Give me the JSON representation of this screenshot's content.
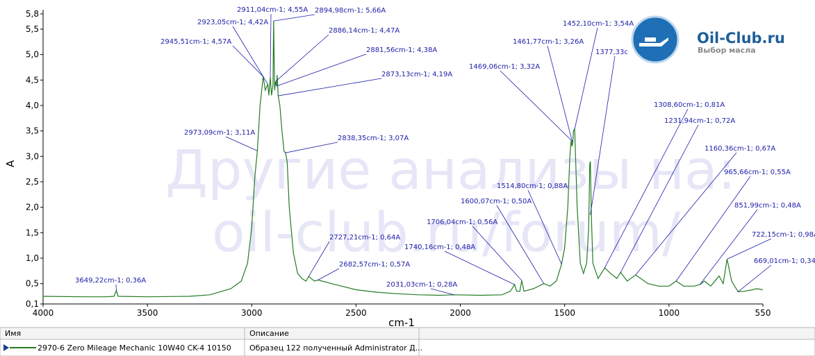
{
  "chart_data": {
    "type": "line",
    "xlabel": "cm-1",
    "ylabel": "A",
    "xlim": [
      4000,
      550
    ],
    "ylim": [
      0.1,
      5.8
    ],
    "xticks": [
      4000,
      3500,
      3000,
      2500,
      2000,
      1500,
      1000,
      550
    ],
    "yticks": [
      {
        "value": 5.8,
        "label": "5,8"
      },
      {
        "value": 5.5,
        "label": "5,5"
      },
      {
        "value": 5.0,
        "label": "5,0"
      },
      {
        "value": 4.5,
        "label": "4,5"
      },
      {
        "value": 4.0,
        "label": "4,0"
      },
      {
        "value": 3.5,
        "label": "3,5"
      },
      {
        "value": 3.0,
        "label": "3,0"
      },
      {
        "value": 2.5,
        "label": "2,5"
      },
      {
        "value": 2.0,
        "label": "2,0"
      },
      {
        "value": 1.5,
        "label": "1,5"
      },
      {
        "value": 1.0,
        "label": "1,0"
      },
      {
        "value": 0.5,
        "label": "0,5"
      },
      {
        "value": 0.1,
        "label": "0,1"
      }
    ],
    "x": [
      4000,
      3800,
      3700,
      3660,
      3649,
      3640,
      3500,
      3300,
      3200,
      3100,
      3050,
      3020,
      3000,
      2985,
      2973,
      2960,
      2945,
      2935,
      2923,
      2918,
      2911,
      2905,
      2898,
      2895,
      2890,
      2886,
      2881,
      2878,
      2873,
      2865,
      2855,
      2845,
      2838,
      2830,
      2820,
      2800,
      2780,
      2760,
      2740,
      2727,
      2700,
      2682,
      2600,
      2500,
      2400,
      2300,
      2200,
      2100,
      2031,
      1900,
      1800,
      1760,
      1740,
      1730,
      1715,
      1706,
      1695,
      1650,
      1600,
      1570,
      1540,
      1515,
      1500,
      1485,
      1475,
      1469,
      1465,
      1461,
      1458,
      1452,
      1440,
      1425,
      1410,
      1395,
      1385,
      1380,
      1377,
      1372,
      1365,
      1340,
      1308,
      1280,
      1250,
      1232,
      1200,
      1160,
      1100,
      1050,
      1000,
      966,
      930,
      880,
      852,
      830,
      800,
      760,
      740,
      722,
      715,
      700,
      669,
      640,
      600,
      580,
      550
    ],
    "series": [
      {
        "color": "#237a23",
        "values": [
          0.25,
          0.24,
          0.24,
          0.25,
          0.36,
          0.25,
          0.24,
          0.25,
          0.28,
          0.4,
          0.55,
          0.9,
          1.6,
          2.6,
          3.11,
          4.0,
          4.57,
          4.3,
          4.42,
          4.2,
          4.55,
          4.2,
          4.4,
          5.66,
          4.3,
          4.47,
          4.38,
          4.6,
          4.19,
          4.0,
          3.5,
          3.1,
          3.07,
          2.9,
          2.0,
          1.1,
          0.7,
          0.6,
          0.55,
          0.64,
          0.55,
          0.57,
          0.48,
          0.38,
          0.33,
          0.3,
          0.28,
          0.27,
          0.28,
          0.27,
          0.28,
          0.35,
          0.48,
          0.35,
          0.35,
          0.56,
          0.35,
          0.4,
          0.5,
          0.45,
          0.55,
          0.88,
          1.2,
          2.0,
          3.0,
          3.32,
          3.2,
          3.26,
          3.5,
          3.54,
          2.0,
          0.9,
          0.7,
          0.9,
          1.6,
          2.85,
          2.9,
          1.8,
          0.9,
          0.6,
          0.81,
          0.7,
          0.6,
          0.72,
          0.55,
          0.67,
          0.5,
          0.45,
          0.45,
          0.55,
          0.45,
          0.45,
          0.48,
          0.55,
          0.45,
          0.65,
          0.5,
          0.98,
          0.85,
          0.55,
          0.34,
          0.35,
          0.38,
          0.4,
          0.38
        ]
      }
    ],
    "annotation_color": "#1c1ca8",
    "annotations": [
      {
        "label": "3649,22cm-1; 0,36A",
        "x": 3649.22,
        "y": 0.36
      },
      {
        "label": "2945,51cm-1; 4,57A",
        "x": 2945.51,
        "y": 4.57
      },
      {
        "label": "2923,05cm-1; 4,42A",
        "x": 2923.05,
        "y": 4.42
      },
      {
        "label": "2911,04cm-1; 4,55A",
        "x": 2911.04,
        "y": 4.55
      },
      {
        "label": "2894,98cm-1; 5,66A",
        "x": 2894.98,
        "y": 5.66
      },
      {
        "label": "2886,14cm-1; 4,47A",
        "x": 2886.14,
        "y": 4.47
      },
      {
        "label": "2881,56cm-1; 4,38A",
        "x": 2881.56,
        "y": 4.38
      },
      {
        "label": "2873,13cm-1; 4,19A",
        "x": 2873.13,
        "y": 4.19
      },
      {
        "label": "2973,09cm-1; 3,11A",
        "x": 2973.09,
        "y": 3.11
      },
      {
        "label": "2838,35cm-1; 3,07A",
        "x": 2838.35,
        "y": 3.07
      },
      {
        "label": "2727,21cm-1; 0,64A",
        "x": 2727.21,
        "y": 0.64
      },
      {
        "label": "2682,57cm-1; 0,57A",
        "x": 2682.57,
        "y": 0.57
      },
      {
        "label": "2031,03cm-1; 0,28A",
        "x": 2031.03,
        "y": 0.28
      },
      {
        "label": "1740,16cm-1; 0,48A",
        "x": 1740.16,
        "y": 0.48
      },
      {
        "label": "1706,04cm-1; 0,56A",
        "x": 1706.04,
        "y": 0.56
      },
      {
        "label": "1600,07cm-1; 0,50A",
        "x": 1600.07,
        "y": 0.5
      },
      {
        "label": "1514,80cm-1; 0,88A",
        "x": 1514.8,
        "y": 0.88
      },
      {
        "label": "1469,06cm-1; 3,32A",
        "x": 1469.06,
        "y": 3.32
      },
      {
        "label": "1461,77cm-1; 3,26A",
        "x": 1461.77,
        "y": 3.26
      },
      {
        "label": "1452,10cm-1; 3,54A",
        "x": 1452.1,
        "y": 3.54
      },
      {
        "label": "1377,33c",
        "x": 1377.33
      },
      {
        "label": "1308,60cm-1; 0,81A",
        "x": 1308.6,
        "y": 0.81
      },
      {
        "label": "1231,94cm-1; 0,72A",
        "x": 1231.94,
        "y": 0.72
      },
      {
        "label": "1160,36cm-1; 0,67A",
        "x": 1160.36,
        "y": 0.67
      },
      {
        "label": "965,66cm-1; 0,55A",
        "x": 965.66,
        "y": 0.55
      },
      {
        "label": "851,99cm-1; 0,48A",
        "x": 851.99,
        "y": 0.48
      },
      {
        "label": "722,15cm-1; 0,98A",
        "x": 722.15,
        "y": 0.98
      },
      {
        "label": "669,01cm-1; 0,34A",
        "x": 669.01,
        "y": 0.34
      }
    ]
  },
  "watermark": [
    "Другие анализы на:",
    "oil-club.ru/forum/"
  ],
  "logo": {
    "title": "Oil-Club.ru",
    "subtitle": "Выбор масла"
  },
  "table": {
    "headers": [
      "Имя",
      "Описание"
    ],
    "rows": [
      [
        "2970-6 Zero Mileage Mechanic 10W40 CK-4 10150",
        "Образец 122 полученный Administrator Д..."
      ]
    ]
  }
}
